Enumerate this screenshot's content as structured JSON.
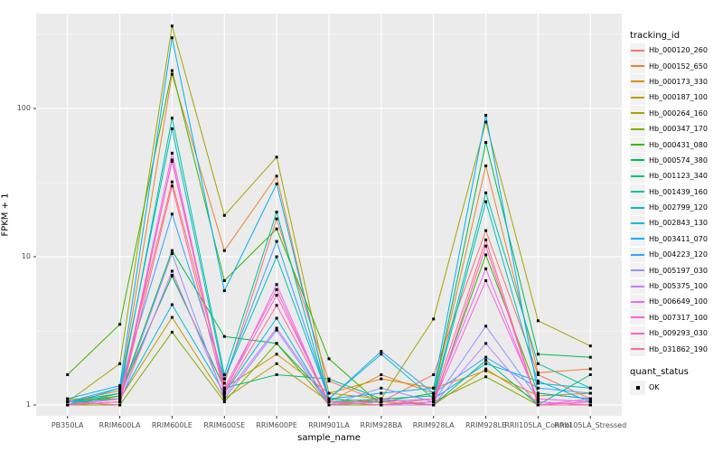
{
  "chart_data": {
    "type": "line",
    "title": "",
    "xlabel": "sample_name",
    "ylabel": "FPKM + 1",
    "y_scale": "log10",
    "y_ticks": [
      1,
      10,
      100
    ],
    "y_minor_ticks": [
      3.1623,
      31.623,
      316.23
    ],
    "ylim": [
      0.85,
      440
    ],
    "grid": "on",
    "legend_position": "right",
    "legend_title": "tracking_id",
    "categories": [
      "PB350LA",
      "RRIM600LA",
      "RRIM600LE",
      "RRIM600SE",
      "RRIM600PE",
      "RRIM901LA",
      "RRIM928BA",
      "RRIM928LA",
      "RRIM928LE",
      "RRII105LA_Control",
      "RRII105LA_Stressed"
    ],
    "series": [
      {
        "name": "Hb_000120_260",
        "color": "#F8766D",
        "values": [
          1.0,
          1.2,
          32,
          1.4,
          18,
          1.45,
          1.05,
          1.6,
          15,
          1.6,
          1.1
        ]
      },
      {
        "name": "Hb_000152_650",
        "color": "#EA8331",
        "values": [
          1.05,
          1.25,
          170,
          11,
          35,
          1.05,
          1.6,
          1.2,
          41,
          1.65,
          1.75
        ]
      },
      {
        "name": "Hb_000173_330",
        "color": "#D89000",
        "values": [
          1.05,
          1.15,
          7.5,
          1.3,
          2.2,
          1.2,
          1.5,
          1.3,
          1.7,
          1.15,
          1.2
        ]
      },
      {
        "name": "Hb_000187_100",
        "color": "#C09B00",
        "values": [
          1.1,
          1.1,
          3.9,
          1.1,
          1.9,
          1.05,
          1.05,
          1.0,
          1.75,
          1.05,
          1.0
        ]
      },
      {
        "name": "Hb_000264_160",
        "color": "#A3A500",
        "values": [
          1.05,
          1.9,
          360,
          19,
          47,
          1.2,
          1.1,
          3.8,
          81,
          3.7,
          2.5
        ]
      },
      {
        "name": "Hb_000347_170",
        "color": "#7CAE00",
        "values": [
          1.0,
          1.0,
          3.1,
          1.05,
          2.6,
          1.0,
          1.0,
          1.05,
          1.55,
          1.0,
          1.0
        ]
      },
      {
        "name": "Hb_000431_080",
        "color": "#39B600",
        "values": [
          1.6,
          3.5,
          180,
          6.9,
          15.4,
          2.05,
          1.0,
          1.05,
          10.3,
          1.2,
          1.1
        ]
      },
      {
        "name": "Hb_000574_380",
        "color": "#00BB4E",
        "values": [
          1.0,
          1.15,
          11,
          2.9,
          2.6,
          1.1,
          1.05,
          1.2,
          59,
          2.2,
          2.1
        ]
      },
      {
        "name": "Hb_001123_340",
        "color": "#00BF7D",
        "values": [
          1.05,
          1.2,
          7.4,
          1.3,
          1.6,
          1.5,
          1.1,
          1.0,
          2.0,
          1.0,
          1.6
        ]
      },
      {
        "name": "Hb_001439_160",
        "color": "#00C1A3",
        "values": [
          1.0,
          1.2,
          86,
          1.6,
          20,
          1.05,
          1.1,
          1.15,
          27,
          1.9,
          1.3
        ]
      },
      {
        "name": "Hb_002799_120",
        "color": "#00BFC4",
        "values": [
          1.0,
          1.3,
          73,
          1.5,
          10,
          1.1,
          2.2,
          1.1,
          23.5,
          1.4,
          1.3
        ]
      },
      {
        "name": "Hb_002843_130",
        "color": "#00BAE0",
        "values": [
          1.05,
          1.1,
          4.75,
          1.2,
          3.85,
          1.0,
          1.05,
          1.1,
          1.9,
          1.45,
          1.05
        ]
      },
      {
        "name": "Hb_003411_070",
        "color": "#00B0F6",
        "values": [
          1.1,
          1.35,
          300,
          5.9,
          31,
          1.1,
          1.2,
          1.3,
          90,
          1.2,
          1.1
        ]
      },
      {
        "name": "Hb_004223_120",
        "color": "#35A2FF",
        "values": [
          1.05,
          1.3,
          19.4,
          1.5,
          12.7,
          1.1,
          2.3,
          1.2,
          2.1,
          1.3,
          1.2
        ]
      },
      {
        "name": "Hb_005197_030",
        "color": "#9590FF",
        "values": [
          1.0,
          1.1,
          10.5,
          1.1,
          3.2,
          1.0,
          1.3,
          1.05,
          3.4,
          1.1,
          1.05
        ]
      },
      {
        "name": "Hb_005375_100",
        "color": "#C77CFF",
        "values": [
          1.0,
          1.05,
          8.0,
          1.15,
          3.3,
          1.05,
          1.0,
          1.0,
          2.6,
          1.0,
          1.1
        ]
      },
      {
        "name": "Hb_006649_100",
        "color": "#E76BF3",
        "values": [
          1.0,
          1.05,
          50,
          1.2,
          6.5,
          1.0,
          1.05,
          1.1,
          8.3,
          1.05,
          1.0
        ]
      },
      {
        "name": "Hb_007317_100",
        "color": "#FA62DB",
        "values": [
          1.0,
          1.1,
          44,
          1.25,
          5.5,
          1.05,
          1.0,
          1.05,
          6.9,
          1.1,
          1.05
        ]
      },
      {
        "name": "Hb_009293_030",
        "color": "#FF62BC",
        "values": [
          1.05,
          1.0,
          45,
          1.3,
          6.0,
          1.0,
          1.1,
          1.0,
          11.8,
          1.0,
          1.05
        ]
      },
      {
        "name": "Hb_031862_190",
        "color": "#FF6A98",
        "values": [
          1.0,
          1.05,
          30,
          1.2,
          4.7,
          1.05,
          1.0,
          1.1,
          13,
          1.0,
          1.0
        ]
      }
    ],
    "quant_legend": {
      "title": "quant_status",
      "items": [
        {
          "label": "OK",
          "marker_color": "#000000"
        }
      ]
    },
    "style": {
      "panel_bg": "#EBEBEB",
      "grid_color": "#FFFFFF",
      "point_color": "#000000",
      "axis_text_color": "#4D4D4D",
      "tick_mark_color": "#333333",
      "legend_key_bg": "#F2F2F2"
    }
  }
}
